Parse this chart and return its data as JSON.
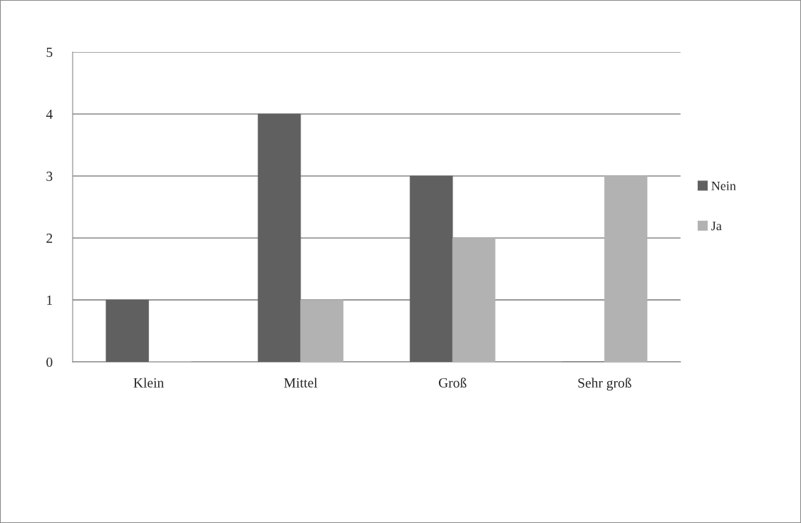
{
  "chart_data": {
    "type": "bar",
    "categories": [
      "Klein",
      "Mittel",
      "Groß",
      "Sehr groß"
    ],
    "series": [
      {
        "name": "Nein",
        "color": "#606060",
        "values": [
          1,
          4,
          3,
          0
        ]
      },
      {
        "name": "Ja",
        "color": "#b2b2b2",
        "values": [
          0,
          1,
          2,
          3
        ]
      }
    ],
    "ylim": [
      0,
      5
    ],
    "yticks": [
      0,
      1,
      2,
      3,
      4,
      5
    ],
    "grid": "y",
    "legend": "right"
  }
}
